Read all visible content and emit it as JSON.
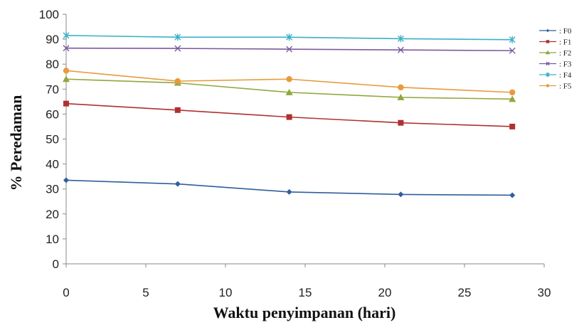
{
  "chart_data": {
    "type": "line",
    "xlabel": "Waktu penyimpanan (hari)",
    "ylabel": "% Peredaman",
    "xlim": [
      0,
      30
    ],
    "ylim": [
      0,
      100
    ],
    "xticks": [
      "0",
      "5",
      "10",
      "15",
      "20",
      "25",
      "30"
    ],
    "yticks": [
      "0",
      "10",
      "20",
      "30",
      "40",
      "50",
      "60",
      "70",
      "80",
      "90",
      "100"
    ],
    "grid": false,
    "legend_position": "right",
    "x": [
      0,
      7,
      14,
      21,
      28
    ],
    "series": [
      {
        "name": ": F0",
        "label": "F0",
        "marker": "diamond",
        "color": "#2E5E9E",
        "values": [
          33.5,
          32.0,
          28.8,
          27.8,
          27.5
        ]
      },
      {
        "name": ": F1",
        "label": "F1",
        "marker": "square",
        "color": "#B03030",
        "values": [
          64.2,
          61.6,
          58.8,
          56.5,
          55.0
        ]
      },
      {
        "name": ": F2",
        "label": "F2",
        "marker": "triangle",
        "color": "#8FA83C",
        "values": [
          74.0,
          72.5,
          68.7,
          66.7,
          66.0
        ]
      },
      {
        "name": ": F3",
        "label": "F3",
        "marker": "x",
        "color": "#7B5A9E",
        "values": [
          86.4,
          86.3,
          86.0,
          85.7,
          85.4
        ]
      },
      {
        "name": ": F4",
        "label": "F4",
        "marker": "star",
        "color": "#3AB0C8",
        "values": [
          91.5,
          90.8,
          90.8,
          90.2,
          89.8
        ]
      },
      {
        "name": ": F5",
        "label": "F5",
        "marker": "circle",
        "color": "#E89A3C",
        "values": [
          77.4,
          73.2,
          74.0,
          70.7,
          68.7
        ]
      }
    ]
  }
}
